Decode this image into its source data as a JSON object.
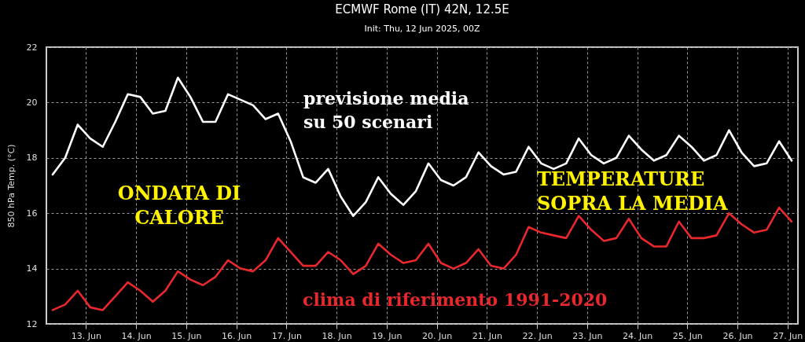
{
  "chart_data": {
    "type": "line",
    "title": "ECMWF Rome (IT) 42N, 12.5E",
    "subtitle": "Init: Thu, 12 Jun 2025, 00Z",
    "ylabel": "850 hPa Temp. (°C)",
    "x": [
      "2025-06-12T08:00",
      "2025-06-12T14:00",
      "2025-06-12T20:00",
      "2025-06-13T02:00",
      "2025-06-13T08:00",
      "2025-06-13T14:00",
      "2025-06-13T20:00",
      "2025-06-14T02:00",
      "2025-06-14T08:00",
      "2025-06-14T14:00",
      "2025-06-14T20:00",
      "2025-06-15T02:00",
      "2025-06-15T08:00",
      "2025-06-15T14:00",
      "2025-06-15T20:00",
      "2025-06-16T02:00",
      "2025-06-16T08:00",
      "2025-06-16T14:00",
      "2025-06-16T20:00",
      "2025-06-17T02:00",
      "2025-06-17T08:00",
      "2025-06-17T14:00",
      "2025-06-17T20:00",
      "2025-06-18T02:00",
      "2025-06-18T08:00",
      "2025-06-18T14:00",
      "2025-06-18T20:00",
      "2025-06-19T02:00",
      "2025-06-19T08:00",
      "2025-06-19T14:00",
      "2025-06-19T20:00",
      "2025-06-20T02:00",
      "2025-06-20T08:00",
      "2025-06-20T14:00",
      "2025-06-20T20:00",
      "2025-06-21T02:00",
      "2025-06-21T08:00",
      "2025-06-21T14:00",
      "2025-06-21T20:00",
      "2025-06-22T02:00",
      "2025-06-22T08:00",
      "2025-06-22T14:00",
      "2025-06-22T20:00",
      "2025-06-23T02:00",
      "2025-06-23T08:00",
      "2025-06-23T14:00",
      "2025-06-23T20:00",
      "2025-06-24T02:00",
      "2025-06-24T08:00",
      "2025-06-24T14:00",
      "2025-06-24T20:00",
      "2025-06-25T02:00",
      "2025-06-25T08:00",
      "2025-06-25T14:00",
      "2025-06-25T20:00",
      "2025-06-26T02:00",
      "2025-06-26T08:00",
      "2025-06-26T14:00",
      "2025-06-26T20:00",
      "2025-06-27T02:00"
    ],
    "series": [
      {
        "name": "previsione media su 50 scenari",
        "color": "#ffffff",
        "values": [
          17.4,
          18.0,
          19.2,
          18.7,
          18.4,
          19.3,
          20.3,
          20.2,
          19.6,
          19.7,
          20.9,
          20.2,
          19.3,
          19.3,
          20.3,
          20.1,
          19.9,
          19.4,
          19.6,
          18.6,
          17.3,
          17.1,
          17.6,
          16.6,
          15.9,
          16.4,
          17.3,
          16.7,
          16.3,
          16.8,
          17.8,
          17.2,
          17.0,
          17.3,
          18.2,
          17.7,
          17.4,
          17.5,
          18.4,
          17.8,
          17.6,
          17.8,
          18.7,
          18.1,
          17.8,
          18.0,
          18.8,
          18.3,
          17.9,
          18.1,
          18.8,
          18.4,
          17.9,
          18.1,
          19.0,
          18.2,
          17.7,
          17.8,
          18.6,
          17.9
        ]
      },
      {
        "name": "clima di riferimento 1991-2020",
        "color": "#e8282d",
        "values": [
          12.5,
          12.7,
          13.2,
          12.6,
          12.5,
          13.0,
          13.5,
          13.2,
          12.8,
          13.2,
          13.9,
          13.6,
          13.4,
          13.7,
          14.3,
          14.0,
          13.9,
          14.3,
          15.1,
          14.6,
          14.1,
          14.1,
          14.6,
          14.3,
          13.8,
          14.1,
          14.9,
          14.5,
          14.2,
          14.3,
          14.9,
          14.2,
          14.0,
          14.2,
          14.7,
          14.1,
          14.0,
          14.5,
          15.5,
          15.3,
          15.2,
          15.1,
          15.9,
          15.4,
          15.0,
          15.1,
          15.8,
          15.1,
          14.8,
          14.8,
          15.7,
          15.1,
          15.1,
          15.2,
          16.0,
          15.6,
          15.3,
          15.4,
          16.2,
          15.7
        ]
      }
    ],
    "xlim": [
      "2025-06-12T05:00",
      "2025-06-27T05:00"
    ],
    "xticks": [
      {
        "value": "2025-06-13",
        "label": "13. Jun"
      },
      {
        "value": "2025-06-14",
        "label": "14. Jun"
      },
      {
        "value": "2025-06-15",
        "label": "15. Jun"
      },
      {
        "value": "2025-06-16",
        "label": "16. Jun"
      },
      {
        "value": "2025-06-17",
        "label": "17. Jun"
      },
      {
        "value": "2025-06-18",
        "label": "18. Jun"
      },
      {
        "value": "2025-06-19",
        "label": "19. Jun"
      },
      {
        "value": "2025-06-20",
        "label": "20. Jun"
      },
      {
        "value": "2025-06-21",
        "label": "21. Jun"
      },
      {
        "value": "2025-06-22",
        "label": "22. Jun"
      },
      {
        "value": "2025-06-23",
        "label": "23. Jun"
      },
      {
        "value": "2025-06-24",
        "label": "24. Jun"
      },
      {
        "value": "2025-06-25",
        "label": "25. Jun"
      },
      {
        "value": "2025-06-26",
        "label": "26. Jun"
      },
      {
        "value": "2025-06-27",
        "label": "27. Jun"
      }
    ],
    "ylim": [
      12,
      22
    ],
    "yticks": [
      12,
      14,
      16,
      18,
      20,
      22
    ],
    "grid": true,
    "line_style": "solid",
    "annotations": [
      "ONDATA DI CALORE",
      "TEMPERATURE SOPRA LA MEDIA"
    ]
  }
}
